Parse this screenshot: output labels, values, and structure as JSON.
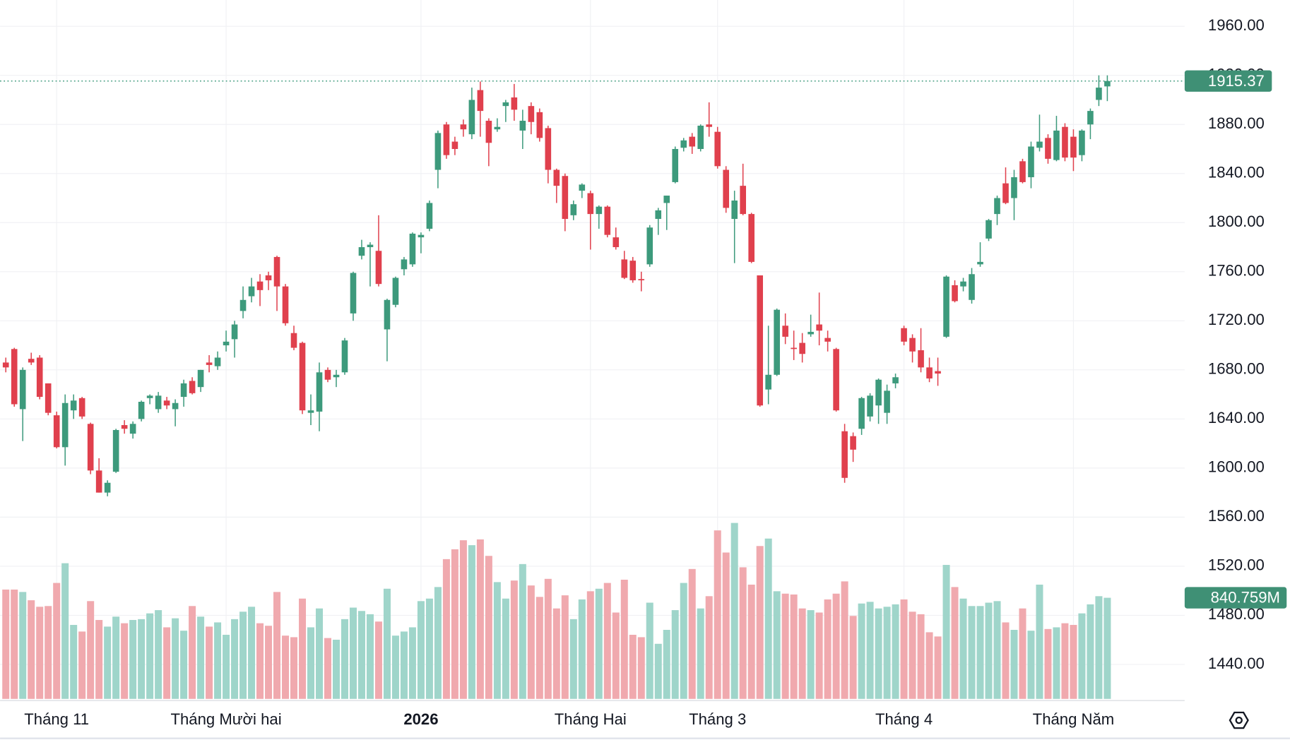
{
  "chart_data": {
    "type": "candlestick",
    "up_color": "#3d9a7c",
    "down_color": "#e0404d",
    "volume_up_color": "#9fd5ca",
    "volume_down_color": "#f0a9ae",
    "ylim": [
      1411.9,
      1981.4
    ],
    "yticks": [
      {
        "value": 1440,
        "label": "1440.00"
      },
      {
        "value": 1480,
        "label": "1480.00"
      },
      {
        "value": 1520,
        "label": "1520.00"
      },
      {
        "value": 1560,
        "label": "1560.00"
      },
      {
        "value": 1600,
        "label": "1600.00"
      },
      {
        "value": 1640,
        "label": "1640.00"
      },
      {
        "value": 1680,
        "label": "1680.00"
      },
      {
        "value": 1720,
        "label": "1720.00"
      },
      {
        "value": 1760,
        "label": "1760.00"
      },
      {
        "value": 1800,
        "label": "1800.00"
      },
      {
        "value": 1840,
        "label": "1840.00"
      },
      {
        "value": 1880,
        "label": "1880.00"
      },
      {
        "value": 1920,
        "label": "1920.00"
      },
      {
        "value": 1960,
        "label": "1960.00"
      }
    ],
    "grid": true,
    "volume_label": "840.759M",
    "categories": [
      null,
      null,
      null,
      null,
      null,
      null,
      "Tháng 11",
      null,
      null,
      null,
      null,
      null,
      null,
      null,
      null,
      null,
      null,
      null,
      null,
      null,
      null,
      null,
      null,
      null,
      null,
      null,
      "Tháng Mười hai",
      null,
      null,
      null,
      null,
      null,
      null,
      null,
      null,
      null,
      null,
      null,
      null,
      null,
      null,
      null,
      null,
      null,
      null,
      null,
      null,
      null,
      null,
      "2026",
      null,
      null,
      null,
      null,
      null,
      null,
      null,
      null,
      null,
      null,
      null,
      null,
      null,
      null,
      null,
      null,
      null,
      null,
      null,
      "Tháng Hai",
      null,
      null,
      null,
      null,
      null,
      null,
      null,
      null,
      null,
      null,
      null,
      null,
      null,
      null,
      "Tháng 3",
      null,
      null,
      null,
      null,
      null,
      null,
      null,
      null,
      null,
      null,
      null,
      null,
      null,
      null,
      null,
      null,
      null,
      null,
      null,
      null,
      null,
      "Tháng 4",
      null,
      null,
      null,
      null,
      null,
      null,
      null,
      null,
      null,
      null,
      null,
      null,
      null,
      null,
      null,
      null,
      null,
      null,
      null,
      "Tháng Năm",
      null,
      null,
      null,
      null
    ],
    "open": [
      1686,
      1697,
      1648,
      1689,
      1690,
      1669,
      1643,
      1617,
      1647,
      1657,
      1636,
      1598,
      1580,
      1597,
      1635,
      1628,
      1640,
      1657,
      1648,
      1655,
      1648,
      1658,
      1671,
      1666,
      1686,
      1683,
      1700,
      1705,
      1728,
      1740,
      1752,
      1757,
      1772,
      1748,
      1710,
      1702,
      1645,
      1646,
      1680,
      1674,
      1678,
      1726,
      1773,
      1780,
      1777,
      1713,
      1733,
      1762,
      1766,
      1788,
      1795,
      1843,
      1880,
      1866,
      1880,
      1872,
      1908,
      1883,
      1876,
      1895,
      1902,
      1875,
      1895,
      1890,
      1877,
      1843,
      1838,
      1806,
      1826,
      1824,
      1807,
      1813,
      1788,
      1770,
      1769,
      1754,
      1766,
      1803,
      1816,
      1833,
      1861,
      1870,
      1860,
      1880,
      1874,
      1843,
      1803,
      1830,
      1807,
      1757,
      1664,
      1676,
      1716,
      1698,
      1702,
      1709,
      1717,
      1706,
      1697,
      1630,
      1626,
      1632,
      1642,
      1651,
      1645,
      1669,
      1714,
      1706,
      1696,
      1682,
      1679,
      1707,
      1749,
      1748,
      1737,
      1766,
      1787,
      1807,
      1832,
      1820,
      1850,
      1837,
      1861,
      1869,
      1851,
      1878,
      1870,
      1855,
      1880,
      1900,
      1911
    ],
    "high": [
      1690,
      1698,
      1682,
      1694,
      1692,
      1669,
      1646,
      1660,
      1660,
      1658,
      1637,
      1608,
      1590,
      1632,
      1639,
      1638,
      1655,
      1660,
      1662,
      1658,
      1656,
      1672,
      1674,
      1680,
      1692,
      1695,
      1712,
      1720,
      1748,
      1755,
      1758,
      1760,
      1773,
      1750,
      1716,
      1703,
      1660,
      1686,
      1682,
      1680,
      1706,
      1760,
      1786,
      1784,
      1806,
      1738,
      1756,
      1772,
      1792,
      1792,
      1818,
      1875,
      1882,
      1870,
      1884,
      1910,
      1915,
      1885,
      1885,
      1900,
      1913,
      1892,
      1898,
      1893,
      1879,
      1844,
      1840,
      1818,
      1832,
      1826,
      1814,
      1814,
      1796,
      1777,
      1772,
      1760,
      1798,
      1812,
      1822,
      1862,
      1869,
      1873,
      1880,
      1898,
      1878,
      1846,
      1826,
      1848,
      1808,
      1757,
      1716,
      1730,
      1726,
      1712,
      1710,
      1725,
      1743,
      1712,
      1698,
      1636,
      1629,
      1658,
      1661,
      1673,
      1668,
      1677,
      1716,
      1709,
      1714,
      1690,
      1690,
      1757,
      1753,
      1755,
      1763,
      1784,
      1803,
      1822,
      1845,
      1843,
      1852,
      1866,
      1888,
      1872,
      1887,
      1881,
      1876,
      1876,
      1893,
      1920,
      1920
    ],
    "low": [
      1678,
      1650,
      1622,
      1684,
      1656,
      1643,
      1616,
      1602,
      1640,
      1640,
      1595,
      1580,
      1577,
      1596,
      1628,
      1624,
      1638,
      1652,
      1645,
      1648,
      1634,
      1650,
      1660,
      1662,
      1678,
      1680,
      1695,
      1690,
      1722,
      1735,
      1732,
      1745,
      1728,
      1716,
      1696,
      1644,
      1635,
      1630,
      1670,
      1666,
      1676,
      1720,
      1770,
      1748,
      1748,
      1687,
      1731,
      1757,
      1764,
      1775,
      1793,
      1828,
      1852,
      1855,
      1870,
      1868,
      1870,
      1846,
      1874,
      1882,
      1883,
      1860,
      1872,
      1866,
      1832,
      1816,
      1793,
      1802,
      1820,
      1778,
      1795,
      1788,
      1778,
      1754,
      1751,
      1744,
      1764,
      1790,
      1794,
      1832,
      1858,
      1856,
      1858,
      1870,
      1844,
      1808,
      1767,
      1806,
      1767,
      1650,
      1652,
      1675,
      1701,
      1688,
      1686,
      1707,
      1700,
      1695,
      1646,
      1588,
      1605,
      1627,
      1638,
      1636,
      1636,
      1665,
      1700,
      1686,
      1678,
      1670,
      1667,
      1706,
      1735,
      1744,
      1734,
      1764,
      1785,
      1798,
      1815,
      1802,
      1832,
      1828,
      1858,
      1848,
      1850,
      1850,
      1842,
      1850,
      1868,
      1895,
      1899
    ],
    "close": [
      1682,
      1652,
      1680,
      1686,
      1658,
      1645,
      1617,
      1653,
      1655,
      1642,
      1598,
      1580,
      1588,
      1631,
      1632,
      1636,
      1654,
      1659,
      1659,
      1651,
      1653,
      1669,
      1661,
      1680,
      1684,
      1690,
      1703,
      1717,
      1737,
      1748,
      1745,
      1753,
      1748,
      1718,
      1698,
      1647,
      1647,
      1678,
      1672,
      1676,
      1704,
      1759,
      1780,
      1782,
      1750,
      1737,
      1755,
      1770,
      1791,
      1790,
      1816,
      1873,
      1855,
      1860,
      1876,
      1900,
      1891,
      1865,
      1878,
      1898,
      1892,
      1883,
      1882,
      1869,
      1843,
      1830,
      1803,
      1815,
      1831,
      1807,
      1813,
      1790,
      1780,
      1755,
      1753,
      1753,
      1796,
      1810,
      1822,
      1860,
      1867,
      1862,
      1879,
      1878,
      1846,
      1812,
      1818,
      1807,
      1768,
      1651,
      1676,
      1729,
      1707,
      1697,
      1693,
      1711,
      1712,
      1703,
      1647,
      1592,
      1615,
      1657,
      1659,
      1672,
      1663,
      1674,
      1703,
      1695,
      1682,
      1673,
      1677,
      1756,
      1736,
      1752,
      1758,
      1768,
      1802,
      1820,
      1816,
      1837,
      1833,
      1862,
      1866,
      1852,
      1875,
      1853,
      1853,
      1875,
      1891,
      1910,
      1915.37
    ],
    "volume": [
      909,
      909,
      889,
      820,
      766,
      772,
      964,
      1128,
      615,
      560,
      813,
      656,
      601,
      684,
      629,
      656,
      663,
      711,
      738,
      595,
      670,
      567,
      772,
      684,
      601,
      636,
      533,
      663,
      725,
      766,
      629,
      608,
      889,
      526,
      513,
      834,
      595,
      752,
      506,
      492,
      663,
      759,
      731,
      704,
      643,
      916,
      526,
      560,
      595,
      813,
      834,
      930,
      1162,
      1244,
      1319,
      1278,
      1326,
      1189,
      971,
      834,
      984,
      1121,
      943,
      848,
      998,
      752,
      861,
      663,
      827,
      895,
      916,
      964,
      718,
      991,
      533,
      513,
      800,
      458,
      574,
      738,
      964,
      1080,
      752,
      854,
      1401,
      1217,
      1463,
      1094,
      950,
      1271,
      1333,
      895,
      875,
      868,
      752,
      738,
      718,
      827,
      875,
      977,
      690,
      793,
      807,
      752,
      766,
      786,
      827,
      725,
      704,
      554,
      519,
      1114,
      930,
      834,
      772,
      772,
      800,
      813,
      636,
      574,
      752,
      567,
      950,
      581,
      595,
      629,
      615,
      711,
      786,
      854,
      840.759
    ]
  }
}
